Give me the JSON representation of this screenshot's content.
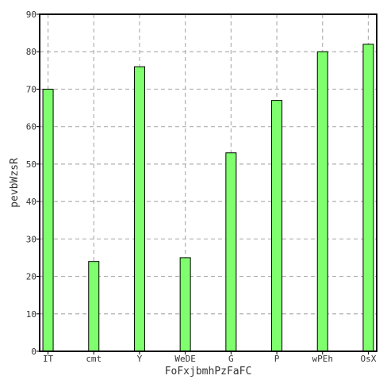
{
  "chart_data": {
    "type": "bar",
    "categories": [
      "IT",
      "cmt",
      "Y",
      "WeDE",
      "G",
      "P",
      "wPEh",
      "OsX"
    ],
    "values": [
      70,
      24,
      76,
      25,
      53,
      67,
      80,
      82
    ],
    "xlabel": "FoFxjbmhPzFaFC",
    "ylabel": "pevbWzsR",
    "ylim": [
      0,
      90
    ],
    "yticks": [
      0,
      10,
      20,
      30,
      40,
      50,
      60,
      70,
      80,
      90
    ],
    "grid": true,
    "colors": {
      "bar_fill": "#80ff6e",
      "bar_stroke": "#000000",
      "grid": "#b0b0b0",
      "axis": "#000000"
    }
  }
}
